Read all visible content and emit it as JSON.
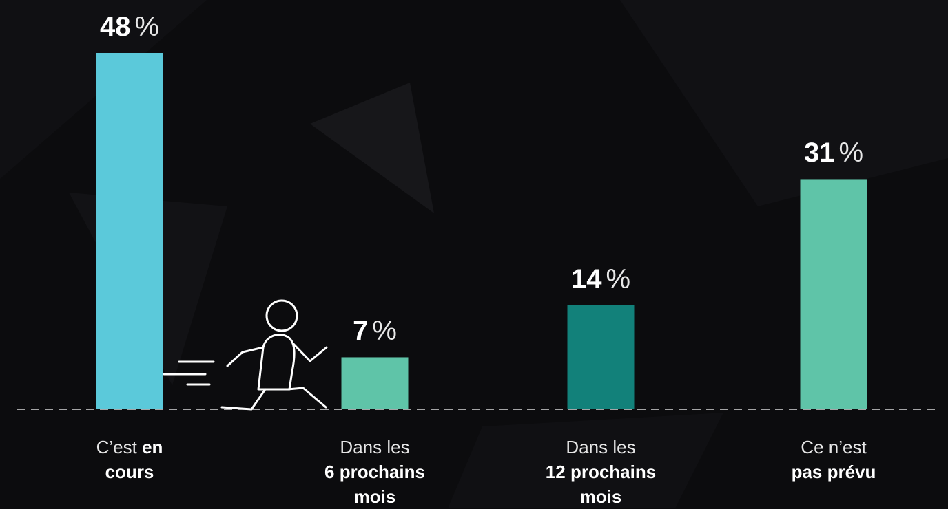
{
  "chart_data": {
    "type": "bar",
    "categories": [
      [
        "C’est",
        "en cours"
      ],
      [
        "Dans les",
        "6 prochains mois"
      ],
      [
        "Dans les",
        "12 prochains mois"
      ],
      [
        "Ce n’est",
        "pas prévu"
      ]
    ],
    "values": [
      48,
      7,
      14,
      31
    ],
    "unit": "%",
    "colors": [
      "#5bc9da",
      "#5fc4a8",
      "#12817a",
      "#5fc4a8"
    ],
    "ylim": [
      0,
      48
    ]
  }
}
